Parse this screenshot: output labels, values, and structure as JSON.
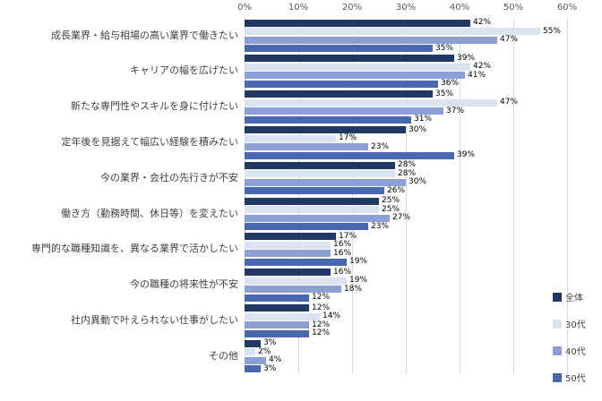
{
  "chart_data": {
    "type": "bar",
    "orientation": "horizontal",
    "title": "",
    "value_suffix": "%",
    "grid": true,
    "legend_position": "right-bottom",
    "x_axis": {
      "ticks": [
        "0%",
        "10%",
        "20%",
        "30%",
        "40%",
        "50%",
        "60%"
      ],
      "min": 0,
      "max": 60
    },
    "categories": [
      "成長業界・給与相場の高い業界で働きたい",
      "キャリアの幅を広げたい",
      "新たな専門性やスキルを身に付けたい",
      "定年後を見据えて幅広い経験を積みたい",
      "今の業界・会社の先行きが不安",
      "働き方（勤務時間、休日等）を変えたい",
      "専門的な職種知識を、異なる業界で活かしたい",
      "今の職種の将来性が不安",
      "社内異動で叶えられない仕事がしたい",
      "その他"
    ],
    "series": [
      {
        "name": "全体",
        "color": "#1f3864",
        "values": [
          42,
          39,
          35,
          30,
          28,
          25,
          17,
          16,
          12,
          3
        ]
      },
      {
        "name": "30代",
        "color": "#dbe3f3",
        "values": [
          55,
          42,
          47,
          17,
          28,
          25,
          16,
          19,
          14,
          2
        ]
      },
      {
        "name": "40代",
        "color": "#8b9fd4",
        "values": [
          47,
          41,
          37,
          23,
          30,
          27,
          16,
          18,
          12,
          4
        ]
      },
      {
        "name": "50代",
        "color": "#4a68ae",
        "values": [
          35,
          36,
          31,
          39,
          26,
          23,
          19,
          12,
          12,
          3
        ]
      }
    ]
  }
}
